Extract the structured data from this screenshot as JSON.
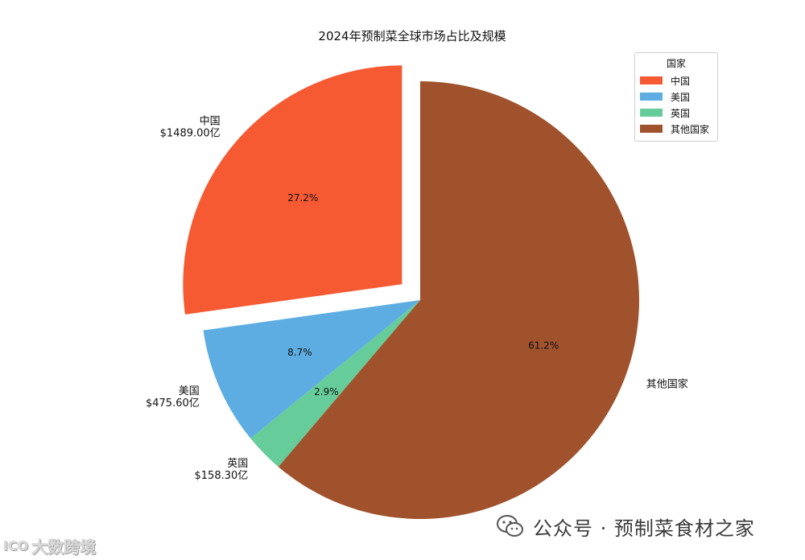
{
  "chart_data": {
    "type": "pie",
    "title": "2024年预制菜全球市场占比及规模",
    "legend": {
      "title": "国家",
      "placement": "top-right"
    },
    "slices": [
      {
        "label": "中国",
        "value_label": "$1489.00亿",
        "value": 1489.0,
        "percent": 27.2,
        "pct_label": "27.2%",
        "color": "#F55A33",
        "exploded": true
      },
      {
        "label": "美国",
        "value_label": "$475.60亿",
        "value": 475.6,
        "percent": 8.7,
        "pct_label": "8.7%",
        "color": "#5DADE2",
        "exploded": false
      },
      {
        "label": "英国",
        "value_label": "$158.30亿",
        "value": 158.3,
        "percent": 2.9,
        "pct_label": "2.9%",
        "color": "#66CC99",
        "exploded": false
      },
      {
        "label": "其他国家",
        "value_label": "",
        "value": 3351.0,
        "percent": 61.2,
        "pct_label": "61.2%",
        "color": "#A0522D",
        "exploded": false
      }
    ]
  },
  "watermark": {
    "icon": "wechat-icon",
    "text": "公众号 · 预制菜食材之家"
  },
  "logo": {
    "icon": "infinity-logo-icon",
    "mark": "ICO",
    "text": "大数跨境"
  }
}
